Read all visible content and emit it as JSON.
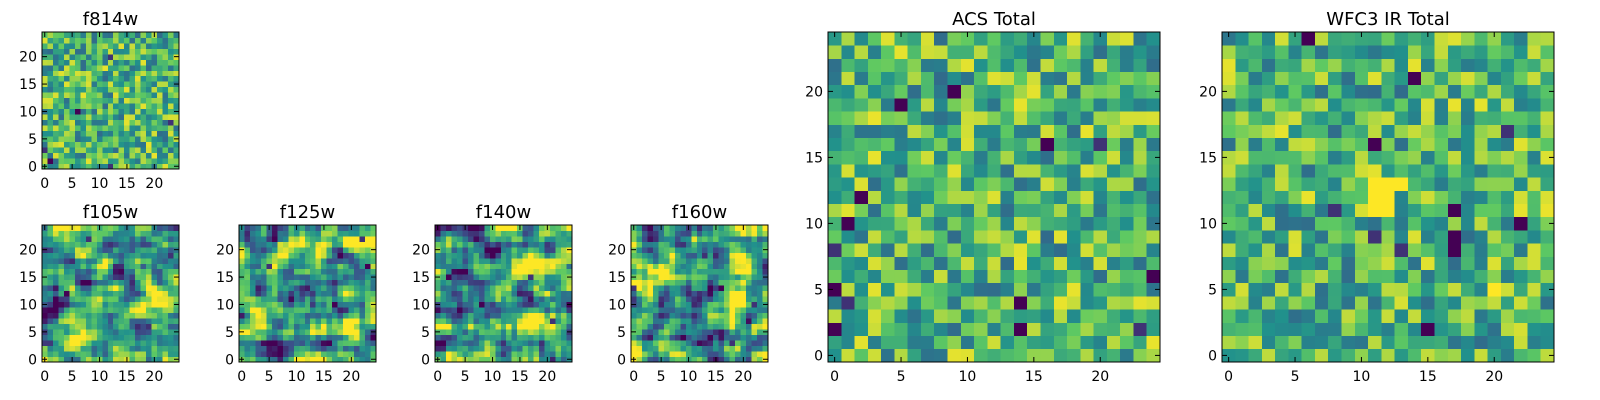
{
  "colormap": [
    "#440154",
    "#3b528b",
    "#21918c",
    "#5ec962",
    "#fde725"
  ],
  "chart_data": [
    {
      "type": "heatmap",
      "title": "f814w",
      "grid": 25,
      "xlim": [
        -0.5,
        24.5
      ],
      "ylim": [
        -0.5,
        24.5
      ],
      "xticks": [
        0,
        5,
        10,
        15,
        20
      ],
      "yticks": [
        0,
        5,
        10,
        15,
        20
      ],
      "seed": 814,
      "pattern": "noise",
      "holes": 6,
      "hot": []
    },
    {
      "type": "heatmap",
      "title": "f105w",
      "grid": 25,
      "xlim": [
        -0.5,
        24.5
      ],
      "ylim": [
        -0.5,
        24.5
      ],
      "xticks": [
        0,
        5,
        10,
        15,
        20
      ],
      "yticks": [
        0,
        5,
        10,
        15,
        20
      ],
      "seed": 105,
      "pattern": "smooth",
      "holes": 4,
      "hot": []
    },
    {
      "type": "heatmap",
      "title": "f125w",
      "grid": 25,
      "xlim": [
        -0.5,
        24.5
      ],
      "ylim": [
        -0.5,
        24.5
      ],
      "xticks": [
        0,
        5,
        10,
        15,
        20
      ],
      "yticks": [
        0,
        5,
        10,
        15,
        20
      ],
      "seed": 125,
      "pattern": "smooth",
      "holes": 5,
      "hot": []
    },
    {
      "type": "heatmap",
      "title": "f140w",
      "grid": 25,
      "xlim": [
        -0.5,
        24.5
      ],
      "ylim": [
        -0.5,
        24.5
      ],
      "xticks": [
        0,
        5,
        10,
        15,
        20
      ],
      "yticks": [
        0,
        5,
        10,
        15,
        20
      ],
      "seed": 140,
      "pattern": "smooth",
      "holes": 5,
      "hot": []
    },
    {
      "type": "heatmap",
      "title": "f160w",
      "grid": 25,
      "xlim": [
        -0.5,
        24.5
      ],
      "ylim": [
        -0.5,
        24.5
      ],
      "xticks": [
        0,
        5,
        10,
        15,
        20
      ],
      "yticks": [
        0,
        5,
        10,
        15,
        20
      ],
      "seed": 160,
      "pattern": "smooth",
      "holes": 6,
      "hot": []
    },
    {
      "type": "heatmap",
      "title": "ACS Total",
      "grid": 25,
      "xlim": [
        -0.5,
        24.5
      ],
      "ylim": [
        -0.5,
        24.5
      ],
      "xticks": [
        0,
        5,
        10,
        15,
        20
      ],
      "yticks": [
        0,
        5,
        10,
        15,
        20
      ],
      "seed": 7,
      "pattern": "noise",
      "holes": 14,
      "hot": []
    },
    {
      "type": "heatmap",
      "title": "WFC3 IR Total",
      "grid": 25,
      "xlim": [
        -0.5,
        24.5
      ],
      "ylim": [
        -0.5,
        24.5
      ],
      "xticks": [
        0,
        5,
        10,
        15,
        20
      ],
      "yticks": [
        0,
        5,
        10,
        15,
        20
      ],
      "seed": 33,
      "pattern": "noise",
      "holes": 12,
      "hot": [
        [
          11,
          12
        ],
        [
          12,
          12
        ],
        [
          11,
          13
        ],
        [
          12,
          13
        ],
        [
          11,
          11
        ],
        [
          12,
          11
        ],
        [
          13,
          13
        ],
        [
          20,
          5
        ]
      ]
    }
  ]
}
